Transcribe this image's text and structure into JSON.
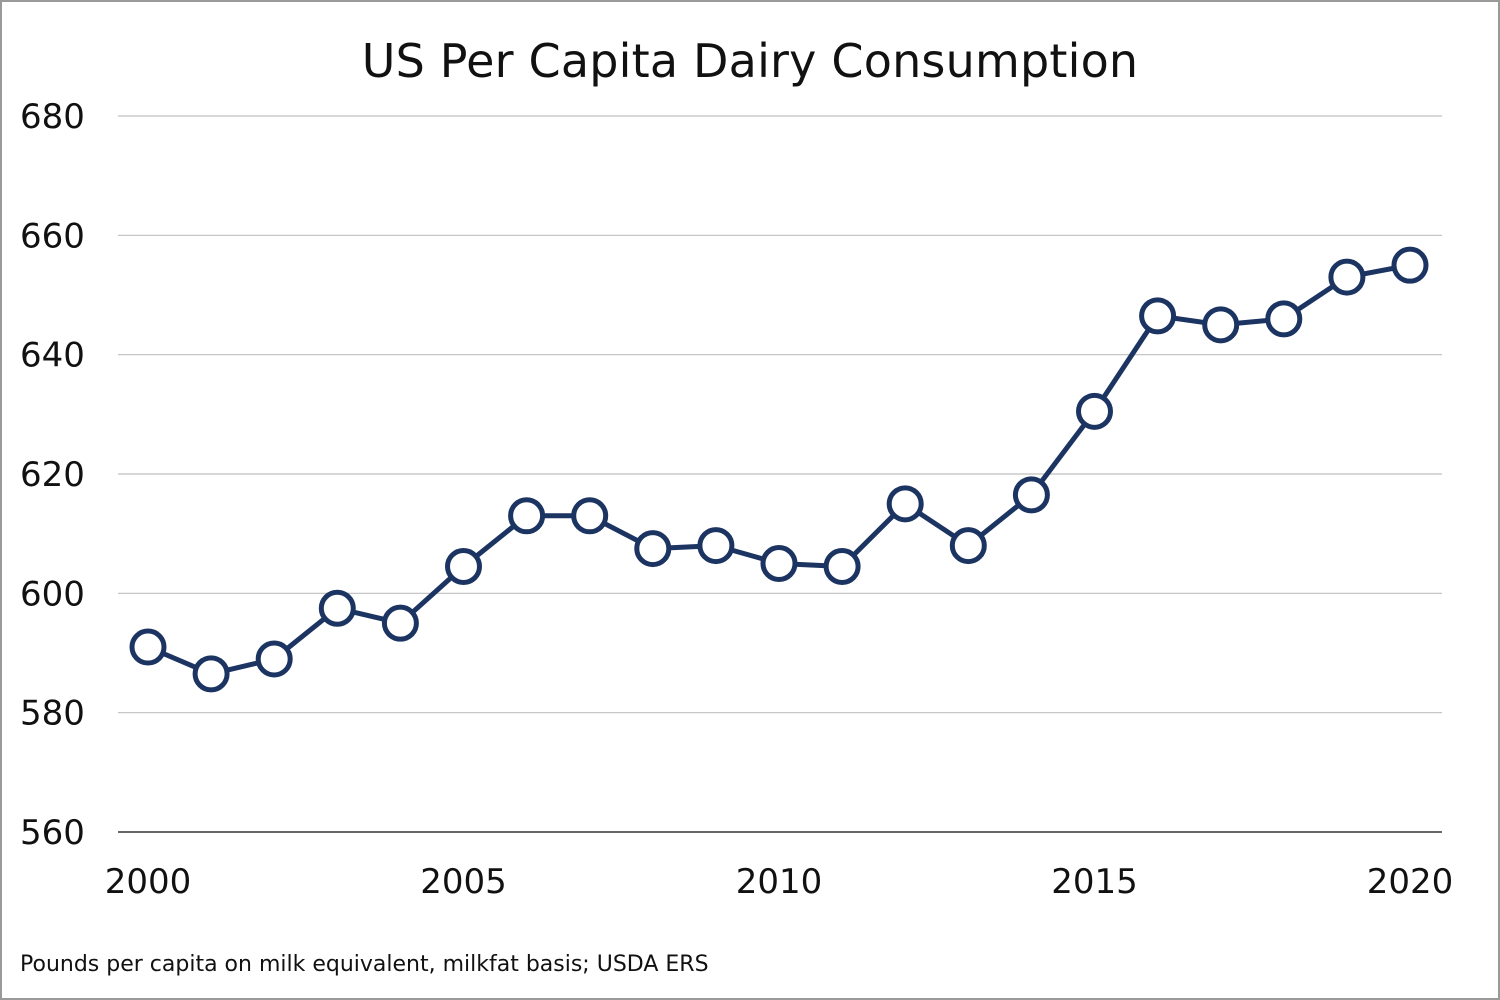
{
  "chart_data": {
    "type": "line",
    "title": "US Per Capita Dairy Consumption",
    "footnote": "Pounds per capita on milk equivalent, milkfat basis; USDA ERS",
    "xlabel": "",
    "ylabel": "",
    "x": [
      2000,
      2001,
      2002,
      2003,
      2004,
      2005,
      2006,
      2007,
      2008,
      2009,
      2010,
      2011,
      2012,
      2013,
      2014,
      2015,
      2016,
      2017,
      2018,
      2019,
      2020
    ],
    "series": [
      {
        "values": [
          591,
          586.5,
          589,
          597.5,
          595,
          604.5,
          613,
          613,
          607.5,
          608,
          605,
          604.5,
          615,
          608,
          616.5,
          630.5,
          646.5,
          645,
          646,
          653,
          655
        ]
      }
    ],
    "xlim": [
      2000,
      2020
    ],
    "ylim": [
      560,
      680
    ],
    "xticks": [
      "2000",
      "2005",
      "2010",
      "2015",
      "2020"
    ],
    "xtick_values": [
      2000,
      2005,
      2010,
      2015,
      2020
    ],
    "yticks": [
      "680",
      "660",
      "640",
      "620",
      "600",
      "580",
      "560"
    ],
    "ytick_values": [
      680,
      660,
      640,
      620,
      600,
      580,
      560
    ],
    "grid": true,
    "legend": "none",
    "colors": {
      "line": "#1c3461",
      "marker_fill": "#ffffff",
      "grid": "#bfbfbf",
      "axis": "#333333"
    }
  }
}
